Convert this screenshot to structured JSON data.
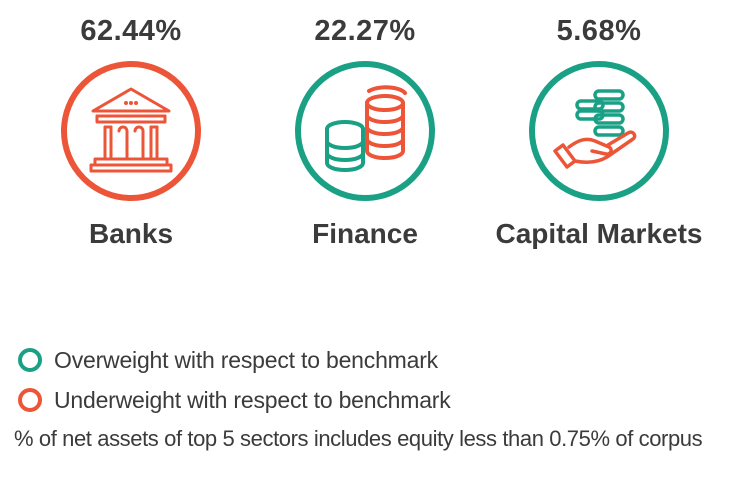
{
  "colors": {
    "overweight": "#1aa185",
    "underweight": "#ec5537",
    "text": "#3b3b3b"
  },
  "sectors": [
    {
      "percent": "62.44%",
      "name": "Banks",
      "status": "underweight",
      "icon": "bank-building-icon"
    },
    {
      "percent": "22.27%",
      "name": "Finance",
      "status": "overweight",
      "icon": "coin-stacks-icon"
    },
    {
      "percent": "5.68%",
      "name": "Capital Markets",
      "status": "overweight",
      "icon": "hand-with-coins-icon"
    }
  ],
  "legend": {
    "overweight": "Overweight with respect to benchmark",
    "underweight": "Underweight with respect to benchmark"
  },
  "footnote": "% of net assets of top 5 sectors includes equity less than 0.75% of corpus"
}
